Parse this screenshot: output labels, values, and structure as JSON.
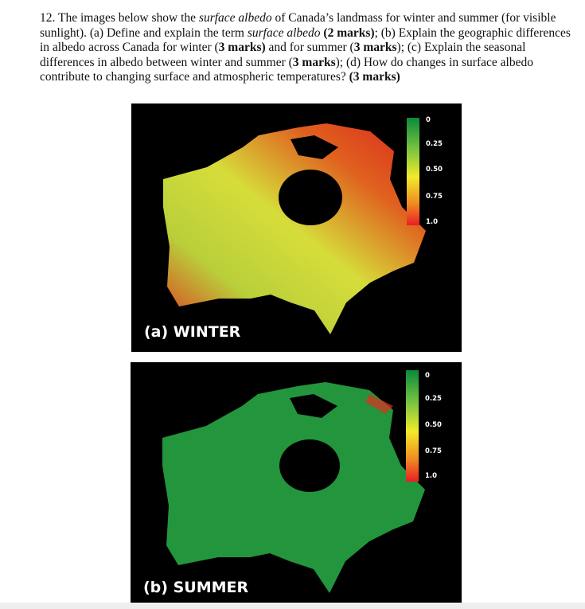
{
  "question": {
    "number": "12.",
    "parts": [
      {
        "t": "The images below show the ",
        "s": "n"
      },
      {
        "t": "surface albedo",
        "s": "i"
      },
      {
        "t": " of Canada’s landmass for winter and summer (for visible sunlight). (a) Define and explain the term ",
        "s": "n"
      },
      {
        "t": "surface albedo",
        "s": "i"
      },
      {
        "t": " ",
        "s": "n"
      },
      {
        "t": "(2 marks)",
        "s": "b"
      },
      {
        "t": "; (b) Explain the geographic differences in albedo across Canada for winter (",
        "s": "n"
      },
      {
        "t": "3 marks)",
        "s": "b"
      },
      {
        "t": " and for summer (",
        "s": "n"
      },
      {
        "t": "3 marks",
        "s": "b"
      },
      {
        "t": "); (c) Explain the seasonal differences in albedo between winter and summer (",
        "s": "n"
      },
      {
        "t": "3 marks",
        "s": "b"
      },
      {
        "t": "); (d) How do changes in surface albedo contribute to changing surface and atmospheric temperatures? ",
        "s": "n"
      },
      {
        "t": "(3 marks)",
        "s": "b"
      }
    ]
  },
  "maps": [
    {
      "label": "(a) WINTER",
      "legend_ticks": [
        "0",
        "0.25",
        "0.50",
        "0.75",
        "1.0"
      ],
      "dominant_colors": [
        "#e8231f",
        "#e9e23a",
        "#7cc540"
      ]
    },
    {
      "label": "(b) SUMMER",
      "legend_ticks": [
        "0",
        "0.25",
        "0.50",
        "0.75",
        "1.0"
      ],
      "dominant_colors": [
        "#1f8f3a",
        "#2fa847"
      ]
    }
  ],
  "colors": {
    "low": "#0a8a3a",
    "mid": "#f2ea2a",
    "high": "#e81e25"
  }
}
